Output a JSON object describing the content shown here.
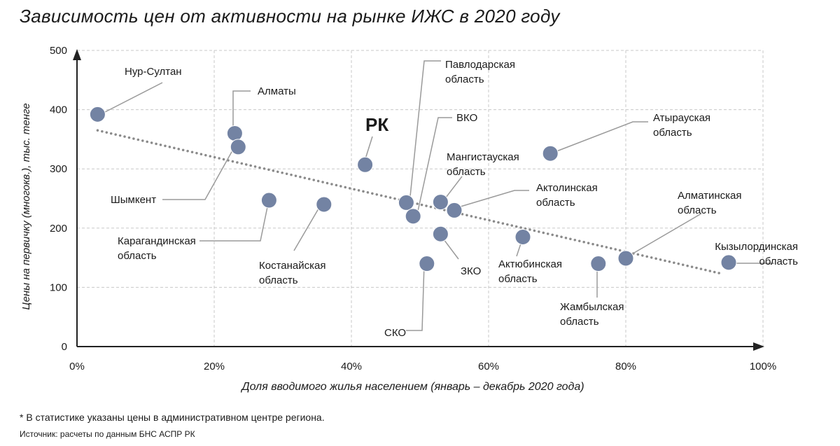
{
  "title": "Зависимость цен от активности на рынке ИЖС в 2020 году",
  "footnote": "* В статистике указаны цены в административном центре региона.",
  "source": "Источник: расчеты по данным БНС АСПР РК",
  "colors": {
    "point": "#7383a3",
    "trend": "#8a8a8a",
    "grid": "#c8c8c8",
    "axis": "#222222",
    "leader": "#9a9a9a"
  },
  "chart_data": {
    "type": "scatter",
    "title": "Зависимость цен от активности на рынке ИЖС в 2020 году",
    "xlabel": "Доля вводимого жилья населением (январь – декабрь 2020 года)",
    "ylabel": "Цены на первичку (многокв.), тыс. тенге",
    "xlim": [
      0,
      100
    ],
    "ylim": [
      0,
      500
    ],
    "x_ticks": [
      "0%",
      "20%",
      "40%",
      "60%",
      "80%",
      "100%"
    ],
    "y_ticks": [
      "0",
      "100",
      "200",
      "300",
      "400",
      "500"
    ],
    "grid": true,
    "trendline": {
      "style": "dotted",
      "from": [
        3,
        365
      ],
      "to": [
        94,
        123
      ]
    },
    "points": [
      {
        "label": "Нур-Султан",
        "x": 3,
        "y": 392
      },
      {
        "label": "Алматы",
        "x": 23,
        "y": 360
      },
      {
        "label": "Шымкент",
        "x": 23.5,
        "y": 337
      },
      {
        "label": "Карагандинская область",
        "x": 28,
        "y": 247
      },
      {
        "label": "Костанайская область",
        "x": 36,
        "y": 240
      },
      {
        "label": "РК",
        "x": 42,
        "y": 307
      },
      {
        "label": "Павлодарская область",
        "x": 48,
        "y": 243
      },
      {
        "label": "ВКО",
        "x": 49,
        "y": 220
      },
      {
        "label": "СКО",
        "x": 51,
        "y": 140
      },
      {
        "label": "ЗКО",
        "x": 53,
        "y": 190
      },
      {
        "label": "Мангистауская область",
        "x": 53,
        "y": 244
      },
      {
        "label": "Актюбинская область",
        "x": 65,
        "y": 185
      },
      {
        "label": "Актолинская область",
        "x": 55,
        "y": 230
      },
      {
        "label": "Атырауская область",
        "x": 69,
        "y": 326
      },
      {
        "label": "Жамбылская область",
        "x": 76,
        "y": 140
      },
      {
        "label": "Алматинская область",
        "x": 80,
        "y": 149
      },
      {
        "label": "Кызылординская область",
        "x": 95,
        "y": 142
      }
    ]
  }
}
